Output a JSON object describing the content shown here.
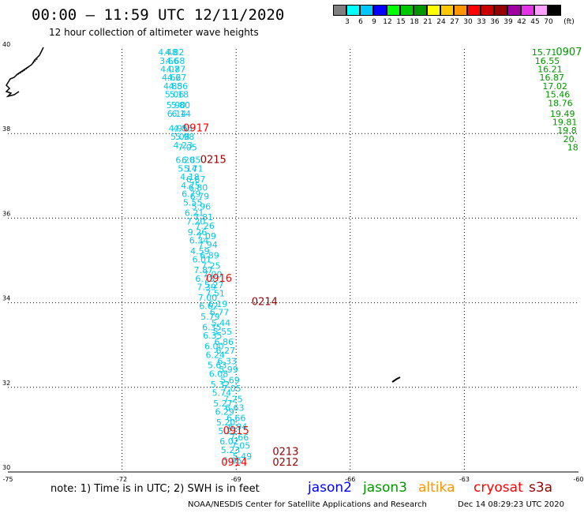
{
  "title": "00:00 – 11:59 UTC 12/11/2020",
  "subtitle": "12 hour collection of altimeter wave heights",
  "legend": {
    "unit": "(ft)",
    "bins": [
      {
        "label": "3",
        "color": "#7f7f7f"
      },
      {
        "label": "6",
        "color": "#00ffff"
      },
      {
        "label": "9",
        "color": "#00c8ff"
      },
      {
        "label": "12",
        "color": "#0000ff"
      },
      {
        "label": "15",
        "color": "#00ff00"
      },
      {
        "label": "18",
        "color": "#00c800"
      },
      {
        "label": "21",
        "color": "#009600"
      },
      {
        "label": "24",
        "color": "#ffff00"
      },
      {
        "label": "27",
        "color": "#ffc800"
      },
      {
        "label": "30",
        "color": "#ff9600"
      },
      {
        "label": "33",
        "color": "#ff0000"
      },
      {
        "label": "36",
        "color": "#c80000"
      },
      {
        "label": "39",
        "color": "#960000"
      },
      {
        "label": "42",
        "color": "#a000a0"
      },
      {
        "label": "45",
        "color": "#e632e6"
      },
      {
        "label": "70",
        "color": "#ffa0ff"
      },
      {
        "label": "",
        "color": "#000000"
      }
    ]
  },
  "axes": {
    "lon_ticks": [
      {
        "value": -75,
        "label": "-75"
      },
      {
        "value": -72,
        "label": "-72"
      },
      {
        "value": -69,
        "label": "-69"
      },
      {
        "value": -66,
        "label": "-66"
      },
      {
        "value": -63,
        "label": "-63"
      },
      {
        "value": -60,
        "label": "-60"
      }
    ],
    "lat_ticks": [
      {
        "value": 40,
        "label": "40"
      },
      {
        "value": 38,
        "label": "38"
      },
      {
        "value": 36,
        "label": "36"
      },
      {
        "value": 34,
        "label": "34"
      },
      {
        "value": 32,
        "label": "32"
      },
      {
        "value": 30,
        "label": "30"
      }
    ],
    "lon_range": [
      -75,
      -60
    ],
    "lat_range": [
      30,
      40
    ]
  },
  "tracks": [
    {
      "satellite": "jason3-cyan-a",
      "color": "#00c8e6",
      "points": [
        [
          "4.48",
          -70.8,
          39.85
        ],
        [
          "3.66",
          -70.76,
          39.65
        ],
        [
          "4.07",
          -70.74,
          39.45
        ],
        [
          "4.62",
          -70.7,
          39.25
        ],
        [
          "4.85",
          -70.66,
          39.05
        ],
        [
          "5.06",
          -70.62,
          38.85
        ],
        [
          "5.90",
          -70.58,
          38.6
        ],
        [
          "6.14",
          -70.56,
          38.4
        ],
        [
          "4.95",
          -70.52,
          38.05
        ],
        [
          "5.08",
          -70.47,
          37.85
        ],
        [
          "4.23",
          -70.4,
          37.65
        ],
        [
          "6.20",
          -70.34,
          37.3
        ],
        [
          "5.14",
          -70.28,
          37.1
        ],
        [
          "4.18",
          -70.22,
          36.9
        ],
        [
          "4.75",
          -70.2,
          36.7
        ],
        [
          "6.79",
          -70.18,
          36.5
        ],
        [
          "5.55",
          -70.14,
          36.3
        ],
        [
          "6.21",
          -70.1,
          36.05
        ],
        [
          "7.20",
          -70.06,
          35.85
        ],
        [
          "9.26",
          -70.02,
          35.6
        ],
        [
          "6.34",
          -69.98,
          35.4
        ],
        [
          "4.59",
          -69.95,
          35.15
        ],
        [
          "6.01",
          -69.9,
          34.95
        ],
        [
          "7.87",
          -69.86,
          34.7
        ],
        [
          "6.73",
          -69.82,
          34.5
        ],
        [
          "7.39",
          -69.78,
          34.3
        ],
        [
          "7.00",
          -69.75,
          34.05
        ],
        [
          "6.62",
          -69.72,
          33.85
        ],
        [
          "5.79",
          -69.68,
          33.6
        ],
        [
          "6.35",
          -69.64,
          33.35
        ],
        [
          "6.35",
          -69.62,
          33.15
        ],
        [
          "6.00",
          -69.58,
          32.9
        ],
        [
          "6.24",
          -69.55,
          32.7
        ],
        [
          "5.63",
          -69.5,
          32.45
        ],
        [
          "6.08",
          -69.46,
          32.25
        ],
        [
          "5.32",
          -69.42,
          32.0
        ],
        [
          "5.74",
          -69.38,
          31.8
        ],
        [
          "5.27",
          -69.35,
          31.55
        ],
        [
          "6.29",
          -69.3,
          31.35
        ],
        [
          "5.20",
          -69.27,
          31.1
        ],
        [
          "5.21",
          -69.22,
          30.9
        ],
        [
          "6.02",
          -69.18,
          30.65
        ],
        [
          "5.23",
          -69.15,
          30.45
        ],
        [
          "5.95",
          -69.1,
          30.2
        ]
      ]
    },
    {
      "satellite": "jason3-cyan-b",
      "color": "#00c8e6",
      "points": [
        [
          "4.82",
          -70.62,
          39.85
        ],
        [
          "4.68",
          -70.6,
          39.65
        ],
        [
          "4.87",
          -70.58,
          39.45
        ],
        [
          "4.67",
          -70.56,
          39.25
        ],
        [
          "4.86",
          -70.52,
          39.05
        ],
        [
          "5.18",
          -70.5,
          38.85
        ],
        [
          "5.80",
          -70.46,
          38.6
        ],
        [
          "6.14",
          -70.44,
          38.4
        ],
        [
          "4.85",
          -70.4,
          38.05
        ],
        [
          "5.98",
          -70.35,
          37.85
        ],
        [
          "7.05",
          -70.28,
          37.6
        ],
        [
          "6.85",
          -70.18,
          37.3
        ],
        [
          "5.71",
          -70.12,
          37.1
        ],
        [
          "6.67",
          -70.06,
          36.85
        ],
        [
          "6.80",
          -70.0,
          36.65
        ],
        [
          "6.79",
          -69.96,
          36.45
        ],
        [
          "5.96",
          -69.92,
          36.2
        ],
        [
          "7.81",
          -69.86,
          35.95
        ],
        [
          "7.26",
          -69.82,
          35.75
        ],
        [
          "7.09",
          -69.78,
          35.5
        ],
        [
          "7.94",
          -69.74,
          35.3
        ],
        [
          "6.89",
          -69.7,
          35.05
        ],
        [
          "7.25",
          -69.66,
          34.8
        ],
        [
          "7.00",
          -69.62,
          34.6
        ],
        [
          "5.27",
          -69.58,
          34.35
        ],
        [
          "7.51",
          -69.55,
          34.15
        ],
        [
          "6.19",
          -69.48,
          33.9
        ],
        [
          "6.77",
          -69.44,
          33.7
        ],
        [
          "5.44",
          -69.4,
          33.45
        ],
        [
          "5.55",
          -69.36,
          33.25
        ],
        [
          "6.86",
          -69.32,
          33.0
        ],
        [
          "6.27",
          -69.28,
          32.8
        ],
        [
          "6.33",
          -69.24,
          32.55
        ],
        [
          "5.99",
          -69.2,
          32.35
        ],
        [
          "5.69",
          -69.16,
          32.1
        ],
        [
          "7.05",
          -69.12,
          31.9
        ],
        [
          "7.25",
          -69.08,
          31.65
        ],
        [
          "6.63",
          -69.04,
          31.45
        ],
        [
          "6.66",
          -69.0,
          31.2
        ],
        [
          "6.94",
          -68.96,
          31.0
        ],
        [
          "7.66",
          -68.92,
          30.75
        ],
        [
          "7.05",
          -68.88,
          30.55
        ],
        [
          "5.49",
          -68.84,
          30.3
        ]
      ]
    },
    {
      "satellite": "jason3-green",
      "color": "#009600",
      "points": [
        [
          "15.71",
          -60.9,
          39.85
        ],
        [
          "16.55",
          -60.82,
          39.65
        ],
        [
          "16.21",
          -60.75,
          39.45
        ],
        [
          "16.87",
          -60.7,
          39.25
        ],
        [
          "17.02",
          -60.62,
          39.05
        ],
        [
          "15.46",
          -60.55,
          38.85
        ],
        [
          "18.76",
          -60.48,
          38.65
        ],
        [
          "19.49",
          -60.42,
          38.4
        ],
        [
          "19.81",
          -60.36,
          38.2
        ],
        [
          "19.8",
          -60.3,
          38.0
        ],
        [
          "20.",
          -60.22,
          37.8
        ],
        [
          "18",
          -60.15,
          37.6
        ]
      ]
    }
  ],
  "pass_labels": [
    {
      "text": "0917",
      "color": "#ff0000",
      "lon": -70.05,
      "lat": 38.05
    },
    {
      "text": "0215",
      "color": "#960000",
      "lon": -69.6,
      "lat": 37.3
    },
    {
      "text": "0916",
      "color": "#ff0000",
      "lon": -69.45,
      "lat": 34.5
    },
    {
      "text": "0214",
      "color": "#960000",
      "lon": -68.25,
      "lat": 33.95
    },
    {
      "text": "0915",
      "color": "#ff0000",
      "lon": -69.0,
      "lat": 30.9
    },
    {
      "text": "0213",
      "color": "#960000",
      "lon": -67.7,
      "lat": 30.4
    },
    {
      "text": "0914",
      "color": "#ff0000",
      "lon": -69.05,
      "lat": 30.15
    },
    {
      "text": "0212",
      "color": "#960000",
      "lon": -67.7,
      "lat": 30.15
    },
    {
      "text": "0907",
      "color": "#009600",
      "lon": -60.25,
      "lat": 39.85
    }
  ],
  "note": "note:  1) Time is in UTC;  2) SWH is in feet",
  "satellites": [
    {
      "name": "jason2",
      "color": "#0000ff"
    },
    {
      "name": "jason3",
      "color": "#009600"
    },
    {
      "name": "altika",
      "color": "#ff9600"
    },
    {
      "name": "cryosat",
      "color": "#ff0000"
    },
    {
      "name": "s3a",
      "color": "#960000"
    }
  ],
  "credit": "NOAA/NESDIS Center for Satellite Applications and Research",
  "timestamp": "Dec 14 08:29:23 UTC 2020"
}
